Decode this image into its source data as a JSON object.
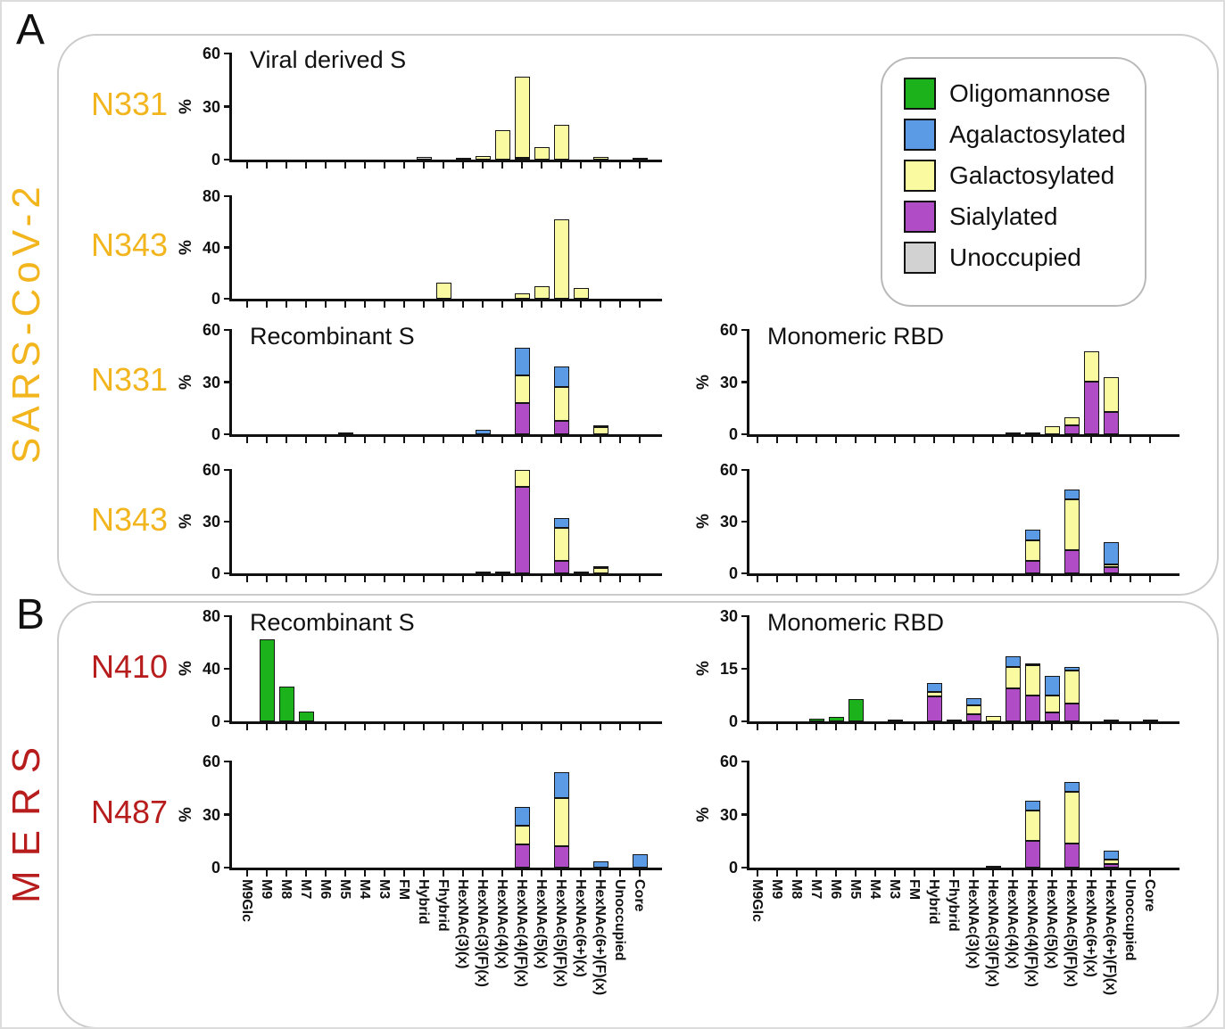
{
  "panels": [
    {
      "id": "A",
      "virus": "SARS-CoV-2",
      "color": "#F2B51E"
    },
    {
      "id": "B",
      "virus": "MERS",
      "color": "#B81D1D"
    }
  ],
  "legend": [
    {
      "key": "oligomannose",
      "label": "Oligomannose",
      "color": "#1CB21C"
    },
    {
      "key": "agalactosylated",
      "label": "Agalactosylated",
      "color": "#5B9BE6"
    },
    {
      "key": "galactosylated",
      "label": "Galactosylated",
      "color": "#FAFAA0"
    },
    {
      "key": "sialylated",
      "label": "Sialylated",
      "color": "#B14CC7"
    },
    {
      "key": "unoccupied",
      "label": "Unoccupied",
      "color": "#D2D2D2"
    }
  ],
  "chart_data": {
    "type": "bar",
    "stacked": true,
    "ylabel": "%",
    "grid": false,
    "stack_order": [
      "oligomannose",
      "sialylated",
      "galactosylated",
      "agalactosylated",
      "unoccupied"
    ],
    "categories": [
      "M9Glc",
      "M9",
      "M8",
      "M7",
      "M6",
      "M5",
      "M4",
      "M3",
      "FM",
      "Hybrid",
      "Fhybrid",
      "HexNAc(3)(x)",
      "HexNAc(3)(F)(x)",
      "HexNAc(4)(x)",
      "HexNAc(4)(F)(x)",
      "HexNAc(5)(x)",
      "HexNAc(5)(F)(x)",
      "HexNAc(6+)(x)",
      "HexNAc(6+)(F)(x)",
      "Unoccupied",
      "Core"
    ],
    "charts": [
      {
        "id": "n331-viral-s",
        "panel": "A",
        "site": "N331",
        "row": 0,
        "col": "left",
        "title": "Viral derived S",
        "ylim": [
          0,
          60
        ],
        "yticks": [
          0,
          30,
          60
        ],
        "bars": [
          {
            "category": "Hybrid",
            "stacks": {
              "unoccupied": 1.5
            }
          },
          {
            "category": "HexNAc(3)(x)",
            "stacks": {
              "agalactosylated": 1
            }
          },
          {
            "category": "HexNAc(3)(F)(x)",
            "stacks": {
              "galactosylated": 2
            }
          },
          {
            "category": "HexNAc(4)(x)",
            "stacks": {
              "galactosylated": 16.5
            }
          },
          {
            "category": "HexNAc(4)(F)(x)",
            "stacks": {
              "sialylated": 1,
              "galactosylated": 46
            }
          },
          {
            "category": "HexNAc(5)(x)",
            "stacks": {
              "galactosylated": 7
            }
          },
          {
            "category": "HexNAc(5)(F)(x)",
            "stacks": {
              "galactosylated": 19.5
            }
          },
          {
            "category": "HexNAc(6+)(F)(x)",
            "stacks": {
              "galactosylated": 1.5
            }
          },
          {
            "category": "Core",
            "stacks": {
              "agalactosylated": 1
            }
          }
        ]
      },
      {
        "id": "n343-viral-s",
        "panel": "A",
        "site": "N343",
        "row": 1,
        "col": "left",
        "title": "",
        "ylim": [
          0,
          80
        ],
        "yticks": [
          0,
          40,
          80
        ],
        "bars": [
          {
            "category": "Fhybrid",
            "stacks": {
              "galactosylated": 12.5
            }
          },
          {
            "category": "HexNAc(4)(F)(x)",
            "stacks": {
              "galactosylated": 4
            }
          },
          {
            "category": "HexNAc(5)(x)",
            "stacks": {
              "galactosylated": 10
            }
          },
          {
            "category": "HexNAc(5)(F)(x)",
            "stacks": {
              "galactosylated": 62
            }
          },
          {
            "category": "HexNAc(6+)(x)",
            "stacks": {
              "galactosylated": 8.5
            }
          }
        ]
      },
      {
        "id": "n331-recombinant-s",
        "panel": "A",
        "site": "N331",
        "row": 2,
        "col": "left",
        "title": "Recombinant S",
        "ylim": [
          0,
          60
        ],
        "yticks": [
          0,
          30,
          60
        ],
        "bars": [
          {
            "category": "M5",
            "stacks": {
              "oligomannose": 0.7
            }
          },
          {
            "category": "HexNAc(3)(F)(x)",
            "stacks": {
              "agalactosylated": 2.5
            }
          },
          {
            "category": "HexNAc(4)(F)(x)",
            "stacks": {
              "sialylated": 18,
              "galactosylated": 16,
              "agalactosylated": 16
            }
          },
          {
            "category": "HexNAc(5)(F)(x)",
            "stacks": {
              "sialylated": 7.5,
              "galactosylated": 19.5,
              "agalactosylated": 12
            }
          },
          {
            "category": "HexNAc(6+)(F)(x)",
            "stacks": {
              "galactosylated": 4,
              "unoccupied": 0.7
            }
          }
        ]
      },
      {
        "id": "n331-monomeric-rbd",
        "panel": "A",
        "site": "N331",
        "row": 2,
        "col": "right",
        "title": "Monomeric RBD",
        "ylim": [
          0,
          60
        ],
        "yticks": [
          0,
          30,
          60
        ],
        "bars": [
          {
            "category": "HexNAc(4)(x)",
            "stacks": {
              "agalactosylated": 0.5
            }
          },
          {
            "category": "HexNAc(4)(F)(x)",
            "stacks": {
              "agalactosylated": 1.2
            }
          },
          {
            "category": "HexNAc(5)(x)",
            "stacks": {
              "galactosylated": 4.5
            }
          },
          {
            "category": "HexNAc(5)(F)(x)",
            "stacks": {
              "sialylated": 5,
              "galactosylated": 4.5
            }
          },
          {
            "category": "HexNAc(6+)(x)",
            "stacks": {
              "sialylated": 30.5,
              "galactosylated": 17
            }
          },
          {
            "category": "HexNAc(6+)(F)(x)",
            "stacks": {
              "sialylated": 13,
              "galactosylated": 20
            }
          }
        ]
      },
      {
        "id": "n343-recombinant-s",
        "panel": "A",
        "site": "N343",
        "row": 3,
        "col": "left",
        "title": "",
        "ylim": [
          0,
          60
        ],
        "yticks": [
          0,
          30,
          60
        ],
        "bars": [
          {
            "category": "HexNAc(3)(F)(x)",
            "stacks": {
              "agalactosylated": 0.5
            }
          },
          {
            "category": "HexNAc(4)(x)",
            "stacks": {
              "agalactosylated": 0.5
            }
          },
          {
            "category": "HexNAc(4)(F)(x)",
            "stacks": {
              "sialylated": 50,
              "galactosylated": 10
            }
          },
          {
            "category": "HexNAc(5)(F)(x)",
            "stacks": {
              "sialylated": 7,
              "galactosylated": 19.5,
              "agalactosylated": 5.5
            }
          },
          {
            "category": "HexNAc(6+)(x)",
            "stacks": {
              "agalactosylated": 0.5
            }
          },
          {
            "category": "HexNAc(6+)(F)(x)",
            "stacks": {
              "galactosylated": 3.2,
              "unoccupied": 0.7
            }
          }
        ]
      },
      {
        "id": "n343-monomeric-rbd",
        "panel": "A",
        "site": "N343",
        "row": 3,
        "col": "right",
        "title": "",
        "ylim": [
          0,
          60
        ],
        "yticks": [
          0,
          30,
          60
        ],
        "bars": [
          {
            "category": "HexNAc(4)(F)(x)",
            "stacks": {
              "sialylated": 7.5,
              "galactosylated": 11.5,
              "agalactosylated": 6.5
            }
          },
          {
            "category": "HexNAc(5)(F)(x)",
            "stacks": {
              "sialylated": 13.5,
              "galactosylated": 29.5,
              "agalactosylated": 5.5
            }
          },
          {
            "category": "HexNAc(6+)(F)(x)",
            "stacks": {
              "sialylated": 3.5,
              "galactosylated": 1.5,
              "agalactosylated": 13
            }
          }
        ]
      },
      {
        "id": "n410-recombinant-s",
        "panel": "B",
        "site": "N410",
        "row": 4,
        "col": "left",
        "title": "Recombinant S",
        "ylim": [
          0,
          80
        ],
        "yticks": [
          0,
          40,
          80
        ],
        "bars": [
          {
            "category": "M9",
            "stacks": {
              "oligomannose": 62.5
            }
          },
          {
            "category": "M8",
            "stacks": {
              "oligomannose": 26.5
            }
          },
          {
            "category": "M7",
            "stacks": {
              "oligomannose": 7.5
            }
          }
        ]
      },
      {
        "id": "n410-monomeric-rbd",
        "panel": "B",
        "site": "N410",
        "row": 4,
        "col": "right",
        "title": "Monomeric RBD",
        "ylim": [
          0,
          30
        ],
        "yticks": [
          0,
          15,
          30
        ],
        "bars": [
          {
            "category": "M7",
            "stacks": {
              "oligomannose": 0.8
            }
          },
          {
            "category": "M6",
            "stacks": {
              "oligomannose": 1.2
            }
          },
          {
            "category": "M5",
            "stacks": {
              "oligomannose": 6.3
            }
          },
          {
            "category": "M3",
            "stacks": {
              "oligomannose": 0.5
            }
          },
          {
            "category": "Hybrid",
            "stacks": {
              "sialylated": 7,
              "galactosylated": 1.5,
              "agalactosylated": 2.5
            }
          },
          {
            "category": "Fhybrid",
            "stacks": {
              "agalactosylated": 0.6
            }
          },
          {
            "category": "HexNAc(3)(x)",
            "stacks": {
              "sialylated": 2,
              "galactosylated": 2.5,
              "agalactosylated": 2
            }
          },
          {
            "category": "HexNAc(3)(F)(x)",
            "stacks": {
              "galactosylated": 1.5
            }
          },
          {
            "category": "HexNAc(4)(x)",
            "stacks": {
              "sialylated": 9.5,
              "galactosylated": 6,
              "agalactosylated": 3
            }
          },
          {
            "category": "HexNAc(4)(F)(x)",
            "stacks": {
              "sialylated": 7.5,
              "galactosylated": 8.5,
              "unoccupied": 0.5
            }
          },
          {
            "category": "HexNAc(5)(x)",
            "stacks": {
              "sialylated": 2.5,
              "galactosylated": 5,
              "agalactosylated": 5.5
            }
          },
          {
            "category": "HexNAc(5)(F)(x)",
            "stacks": {
              "sialylated": 5,
              "galactosylated": 9.5,
              "agalactosylated": 1
            }
          },
          {
            "category": "HexNAc(6+)(F)(x)",
            "stacks": {
              "galactosylated": 0.4
            }
          },
          {
            "category": "Core",
            "stacks": {
              "agalactosylated": 0.4
            }
          }
        ]
      },
      {
        "id": "n487-recombinant-s",
        "panel": "B",
        "site": "N487",
        "row": 5,
        "col": "left",
        "title": "",
        "ylim": [
          0,
          60
        ],
        "yticks": [
          0,
          30,
          60
        ],
        "bars": [
          {
            "category": "HexNAc(4)(F)(x)",
            "stacks": {
              "sialylated": 13,
              "galactosylated": 10.5,
              "agalactosylated": 11
            }
          },
          {
            "category": "HexNAc(5)(F)(x)",
            "stacks": {
              "sialylated": 12,
              "galactosylated": 27.5,
              "agalactosylated": 14.5
            }
          },
          {
            "category": "HexNAc(6+)(F)(x)",
            "stacks": {
              "agalactosylated": 3.5
            }
          },
          {
            "category": "Core",
            "stacks": {
              "agalactosylated": 7.5
            }
          }
        ]
      },
      {
        "id": "n487-monomeric-rbd",
        "panel": "B",
        "site": "N487",
        "row": 5,
        "col": "right",
        "title": "",
        "ylim": [
          0,
          60
        ],
        "yticks": [
          0,
          30,
          60
        ],
        "bars": [
          {
            "category": "HexNAc(3)(F)(x)",
            "stacks": {
              "agalactosylated": 0.8
            }
          },
          {
            "category": "HexNAc(4)(F)(x)",
            "stacks": {
              "sialylated": 15,
              "galactosylated": 17.5,
              "agalactosylated": 5.5
            }
          },
          {
            "category": "HexNAc(5)(F)(x)",
            "stacks": {
              "sialylated": 13.5,
              "galactosylated": 29.5,
              "agalactosylated": 5.5
            }
          },
          {
            "category": "HexNAc(6+)(F)(x)",
            "stacks": {
              "sialylated": 2,
              "galactosylated": 2.5,
              "agalactosylated": 5
            }
          }
        ]
      }
    ]
  }
}
